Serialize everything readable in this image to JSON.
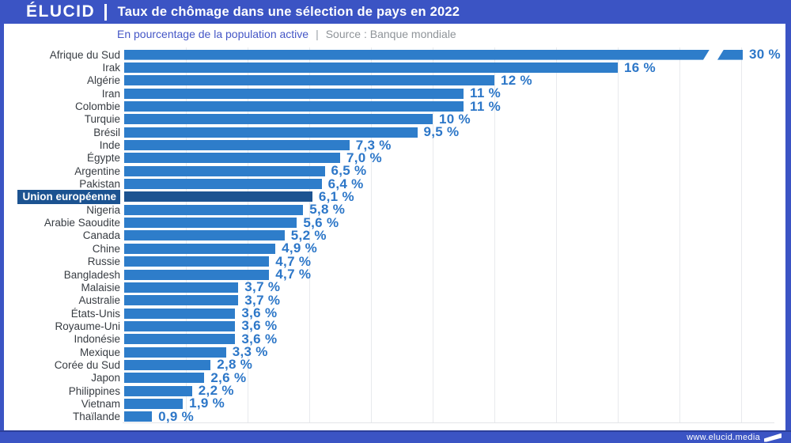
{
  "header": {
    "logo": "ÉLUCID",
    "title": "Taux de chômage dans une sélection de pays en 2022"
  },
  "subtitle": {
    "text": "En pourcentage de la population active",
    "separator": "|",
    "source": "Source : Banque mondiale"
  },
  "footer": {
    "url": "www.elucid.media"
  },
  "colors": {
    "brand_blue": "#3b54c4",
    "bar_blue": "#2e7dca",
    "highlight_blue": "#1c5391",
    "value_text_blue": "#2d77c8",
    "subtitle_blue": "#4456c6",
    "source_gray": "#8f9499",
    "label_gray": "#373c42",
    "gridline_gray": "#e8eaed"
  },
  "chart_data": {
    "type": "bar",
    "orientation": "horizontal",
    "title": "Taux de chômage dans une sélection de pays en 2022",
    "subtitle": "En pourcentage de la population active",
    "source": "Source : Banque mondiale",
    "unit": "%",
    "xlim": [
      0,
      20
    ],
    "gridlines_every": 2,
    "grid": true,
    "legend": false,
    "note": "Afrique du Sud bar is truncated with a break mark; Union européenne row is highlighted",
    "categories": [
      "Afrique du Sud",
      "Irak",
      "Algérie",
      "Iran",
      "Colombie",
      "Turquie",
      "Brésil",
      "Inde",
      "Égypte",
      "Argentine",
      "Pakistan",
      "Union européenne",
      "Nigeria",
      "Arabie Saoudite",
      "Canada",
      "Chine",
      "Russie",
      "Bangladesh",
      "Malaisie",
      "Australie",
      "États-Unis",
      "Royaume-Uni",
      "Indonésie",
      "Mexique",
      "Corée du Sud",
      "Japon",
      "Philippines",
      "Vietnam",
      "Thaïlande"
    ],
    "values": [
      30,
      16,
      12,
      11,
      11,
      10,
      9.5,
      7.3,
      7.0,
      6.5,
      6.4,
      6.1,
      5.8,
      5.6,
      5.2,
      4.9,
      4.7,
      4.7,
      3.7,
      3.7,
      3.6,
      3.6,
      3.6,
      3.3,
      2.8,
      2.6,
      2.2,
      1.9,
      0.9
    ],
    "rows": [
      {
        "label": "Afrique du Sud",
        "value": 30,
        "display": "30 %",
        "truncated": true
      },
      {
        "label": "Irak",
        "value": 16,
        "display": "16 %"
      },
      {
        "label": "Algérie",
        "value": 12,
        "display": "12 %"
      },
      {
        "label": "Iran",
        "value": 11,
        "display": "11 %"
      },
      {
        "label": "Colombie",
        "value": 11,
        "display": "11 %"
      },
      {
        "label": "Turquie",
        "value": 10,
        "display": "10 %"
      },
      {
        "label": "Brésil",
        "value": 9.5,
        "display": "9,5 %"
      },
      {
        "label": "Inde",
        "value": 7.3,
        "display": "7,3 %"
      },
      {
        "label": "Égypte",
        "value": 7.0,
        "display": "7,0 %"
      },
      {
        "label": "Argentine",
        "value": 6.5,
        "display": "6,5 %"
      },
      {
        "label": "Pakistan",
        "value": 6.4,
        "display": "6,4 %"
      },
      {
        "label": "Union européenne",
        "value": 6.1,
        "display": "6,1 %",
        "highlight": true
      },
      {
        "label": "Nigeria",
        "value": 5.8,
        "display": "5,8 %"
      },
      {
        "label": "Arabie Saoudite",
        "value": 5.6,
        "display": "5,6 %"
      },
      {
        "label": "Canada",
        "value": 5.2,
        "display": "5,2 %"
      },
      {
        "label": "Chine",
        "value": 4.9,
        "display": "4,9 %"
      },
      {
        "label": "Russie",
        "value": 4.7,
        "display": "4,7 %"
      },
      {
        "label": "Bangladesh",
        "value": 4.7,
        "display": "4,7 %"
      },
      {
        "label": "Malaisie",
        "value": 3.7,
        "display": "3,7 %"
      },
      {
        "label": "Australie",
        "value": 3.7,
        "display": "3,7 %"
      },
      {
        "label": "États-Unis",
        "value": 3.6,
        "display": "3,6 %"
      },
      {
        "label": "Royaume-Uni",
        "value": 3.6,
        "display": "3,6 %"
      },
      {
        "label": "Indonésie",
        "value": 3.6,
        "display": "3,6 %"
      },
      {
        "label": "Mexique",
        "value": 3.3,
        "display": "3,3 %"
      },
      {
        "label": "Corée du Sud",
        "value": 2.8,
        "display": "2,8 %"
      },
      {
        "label": "Japon",
        "value": 2.6,
        "display": "2,6 %"
      },
      {
        "label": "Philippines",
        "value": 2.2,
        "display": "2,2 %"
      },
      {
        "label": "Vietnam",
        "value": 1.9,
        "display": "1,9 %"
      },
      {
        "label": "Thaïlande",
        "value": 0.9,
        "display": "0,9 %"
      }
    ]
  }
}
